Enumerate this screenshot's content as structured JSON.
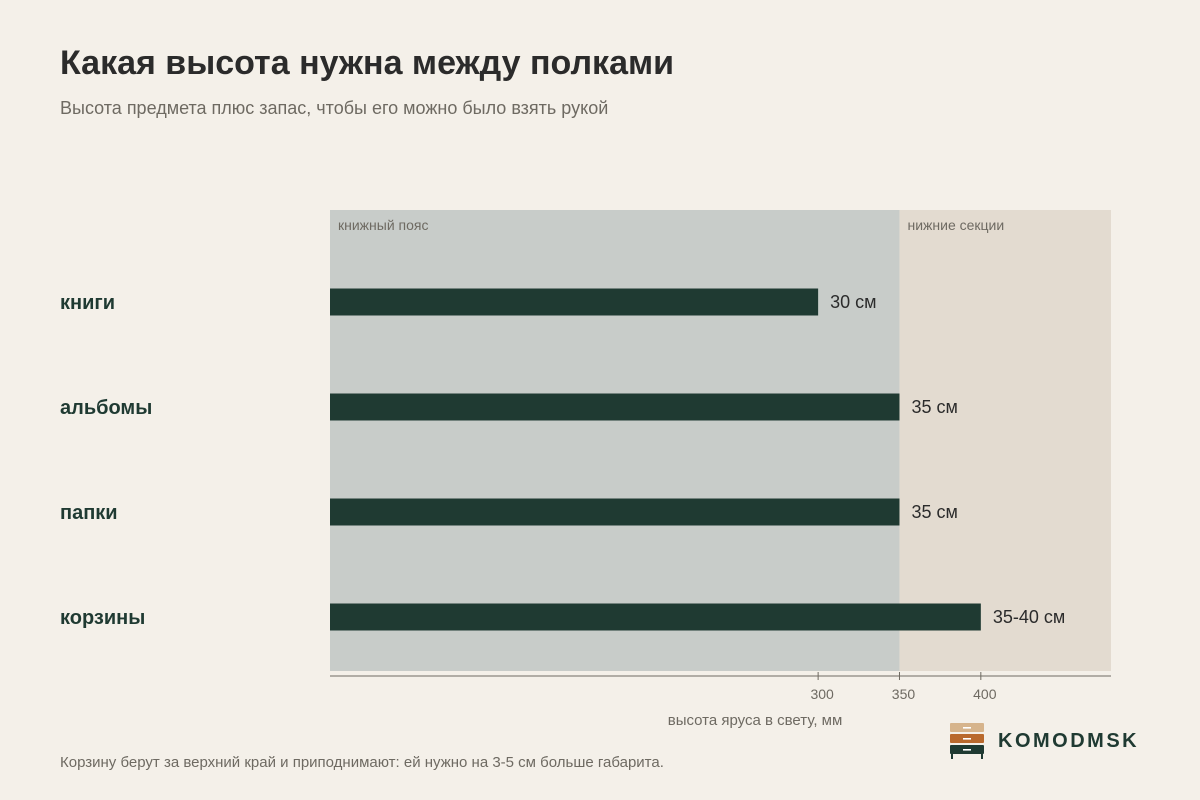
{
  "header": {
    "title": "Какая высота нужна между полками",
    "subtitle": "Высота предмета плюс запас, чтобы его можно было взять рукой"
  },
  "footnote": "Корзину берут за верхний край и приподнимают: ей нужно на 3-5 см больше габарита.",
  "brand": {
    "name": "KOMODMSK"
  },
  "colors": {
    "background": "#f4f0e9",
    "zone_books": "#c8ccc9",
    "zone_lower": "#e3dbd0",
    "bar": "#1f3a32",
    "category_text": "#1f3a32",
    "muted_text": "#6e6a62",
    "logo_top": "#d6b48c",
    "logo_mid": "#b9692d",
    "logo_bottom": "#1f3a32"
  },
  "chart_data": {
    "type": "bar",
    "orientation": "horizontal",
    "categories": [
      "книги",
      "альбомы",
      "папки",
      "корзины"
    ],
    "values": [
      300,
      350,
      350,
      400
    ],
    "value_labels": [
      "30 см",
      "35 см",
      "35 см",
      "35-40 см"
    ],
    "xlabel": "высота яруса в свету, мм",
    "xticks": [
      300,
      350,
      400
    ],
    "xlim": [
      0,
      480
    ],
    "zones": [
      {
        "label": "книжный пояс",
        "from": 0,
        "to": 350
      },
      {
        "label": "нижние секции",
        "from": 350,
        "to": 480
      }
    ],
    "grid": false,
    "legend": "none"
  }
}
